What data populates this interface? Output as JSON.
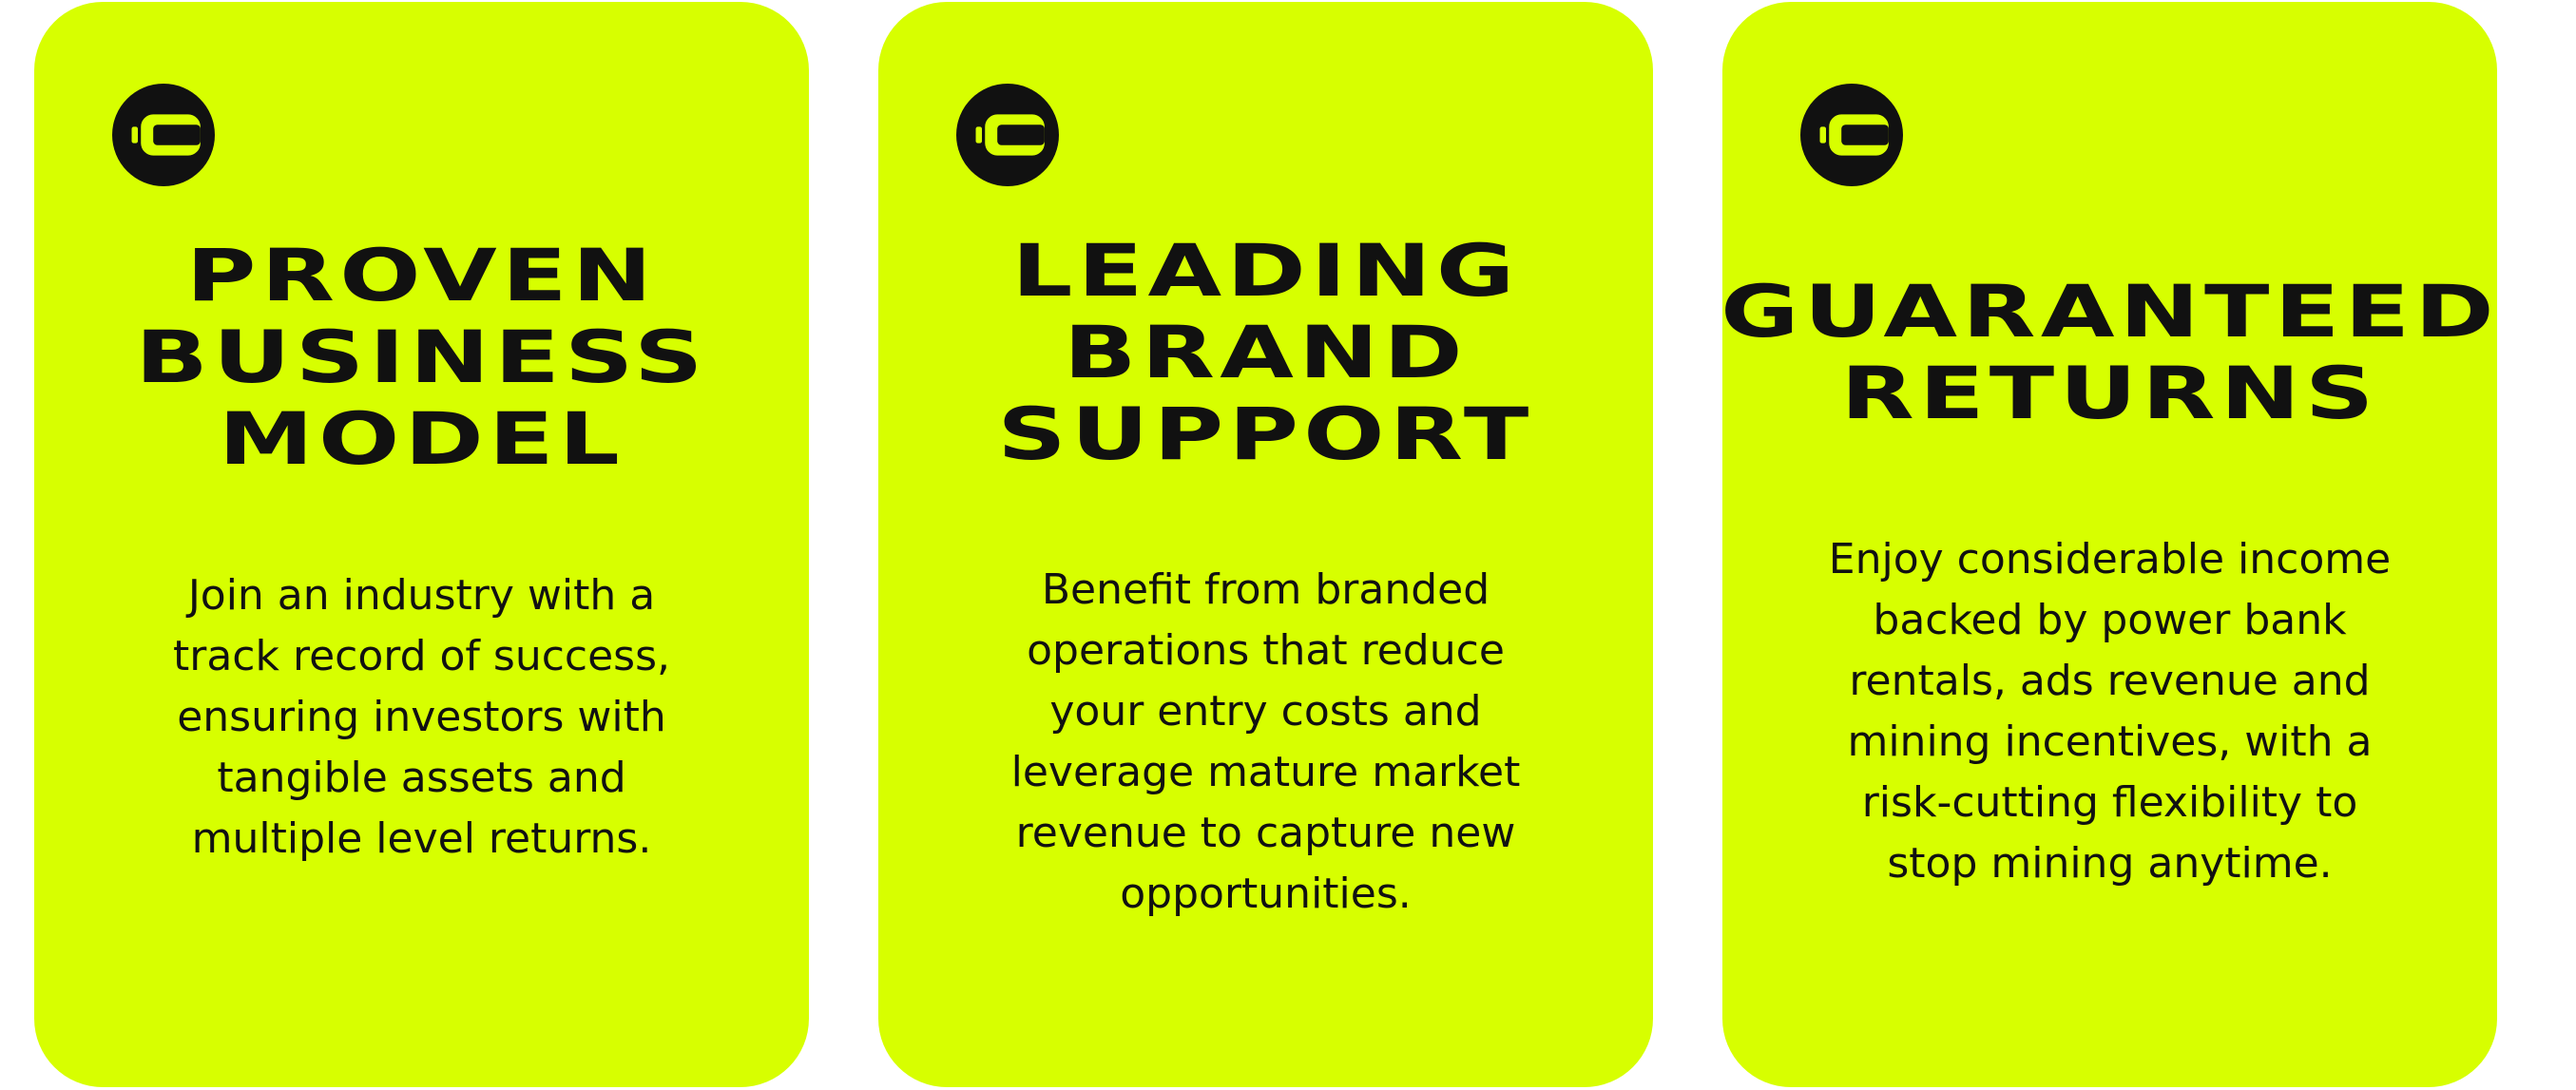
{
  "theme": {
    "card_background": "#d7ff00",
    "text_color": "#111111",
    "page_background": "#ffffff"
  },
  "cards": [
    {
      "icon": "brand-logo-icon",
      "title_lines": [
        "PROVEN",
        "BUSINESS",
        "MODEL"
      ],
      "description_lines": [
        "Join an industry with a",
        "track record of success,",
        "ensuring investors with",
        "tangible assets and",
        "multiple level returns."
      ]
    },
    {
      "icon": "brand-logo-icon",
      "title_lines": [
        "LEADING",
        "BRAND",
        "SUPPORT"
      ],
      "description_lines": [
        "Benefit from branded",
        "operations that reduce",
        "your entry costs and",
        "leverage mature market",
        "revenue to capture new",
        "opportunities."
      ]
    },
    {
      "icon": "brand-logo-icon",
      "title_lines": [
        "GUARANTEED",
        "RETURNS"
      ],
      "description_lines": [
        "Enjoy considerable income",
        "backed by power bank",
        "rentals, ads revenue and",
        "mining incentives, with a",
        "risk-cutting flexibility to",
        "stop mining anytime."
      ]
    }
  ]
}
